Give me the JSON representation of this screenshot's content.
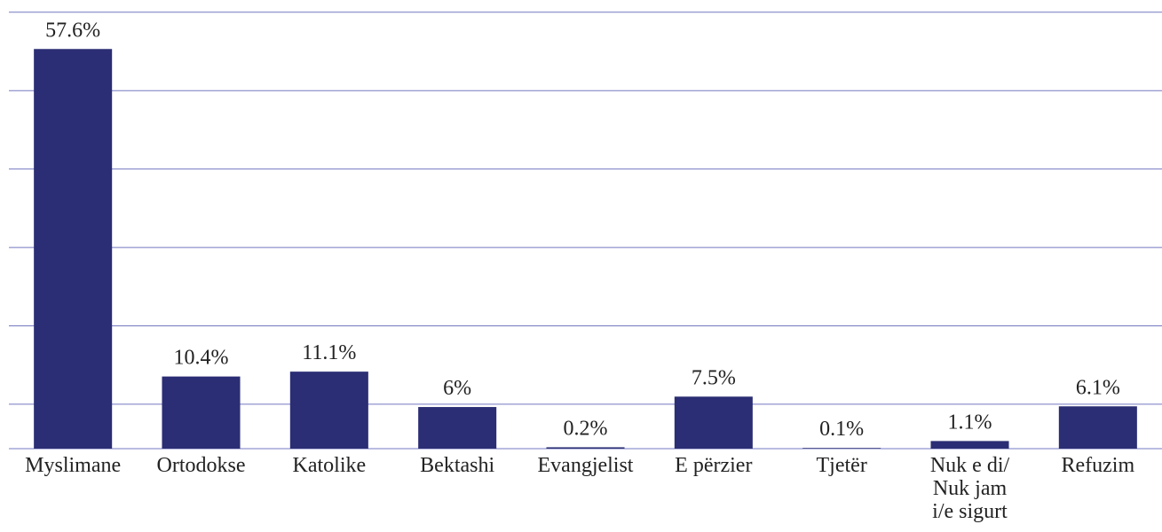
{
  "chart_data": {
    "type": "bar",
    "categories": [
      "Myslimane",
      "Ortodokse",
      "Katolike",
      "Bektashi",
      "Evangjelist",
      "E përzier",
      "Tjetër",
      "Nuk e di/\nNuk jam\ni/e sigurt",
      "Refuzim"
    ],
    "values": [
      57.6,
      10.4,
      11.1,
      6,
      0.2,
      7.5,
      0.1,
      1.1,
      6.1
    ],
    "value_labels": [
      "57.6%",
      "10.4%",
      "11.1%",
      "6%",
      "0.2%",
      "7.5%",
      "0.1%",
      "1.1%",
      "6.1%"
    ],
    "color": "#2b2e74",
    "ylim": [
      0,
      63
    ],
    "yticks": [
      6.4,
      17.7,
      29,
      40.3,
      51.6,
      62.9
    ],
    "grid": true
  }
}
